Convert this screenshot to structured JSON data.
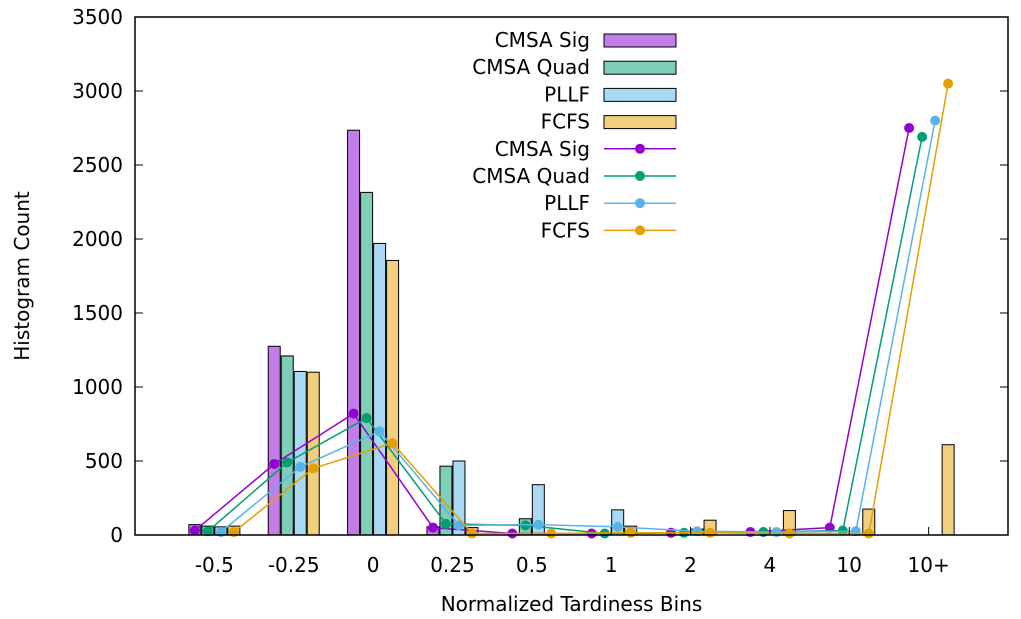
{
  "chart_data": {
    "type": "bar",
    "xlabel": "Normalized Tardiness Bins",
    "ylabel": "Histogram Count",
    "ylim": [
      0,
      3500
    ],
    "yticks": [
      0,
      500,
      1000,
      1500,
      2000,
      2500,
      3000,
      3500
    ],
    "categories": [
      "-0.5",
      "-0.25",
      "0",
      "0.25",
      "0.5",
      "1",
      "2",
      "4",
      "10",
      "10+"
    ],
    "grid": false,
    "legend_position": "top-center",
    "series": [
      {
        "name": "CMSA Sig",
        "color": "#9400d3",
        "bar_fill": "#c27de8",
        "values": [
          70,
          1275,
          2735,
          55,
          0,
          0,
          0,
          0,
          0,
          0
        ],
        "line_values": [
          30,
          480,
          820,
          50,
          10,
          10,
          15,
          20,
          50,
          2750
        ]
      },
      {
        "name": "CMSA Quad",
        "color": "#009e73",
        "bar_fill": "#7fceb9",
        "values": [
          60,
          1210,
          2315,
          465,
          110,
          0,
          0,
          0,
          0,
          0
        ],
        "line_values": [
          25,
          490,
          790,
          75,
          65,
          10,
          15,
          20,
          30,
          2690
        ]
      },
      {
        "name": "PLLF",
        "color": "#56b4e9",
        "bar_fill": "#aad9f4",
        "values": [
          55,
          1105,
          1970,
          500,
          340,
          170,
          40,
          0,
          0,
          0
        ],
        "line_values": [
          20,
          460,
          700,
          65,
          70,
          55,
          25,
          20,
          25,
          2800
        ]
      },
      {
        "name": "FCFS",
        "color": "#e69f00",
        "bar_fill": "#f2cf7f",
        "values": [
          60,
          1100,
          1855,
          50,
          0,
          60,
          100,
          165,
          175,
          610
        ],
        "line_values": [
          20,
          450,
          620,
          10,
          10,
          15,
          15,
          10,
          10,
          3050
        ]
      }
    ]
  }
}
